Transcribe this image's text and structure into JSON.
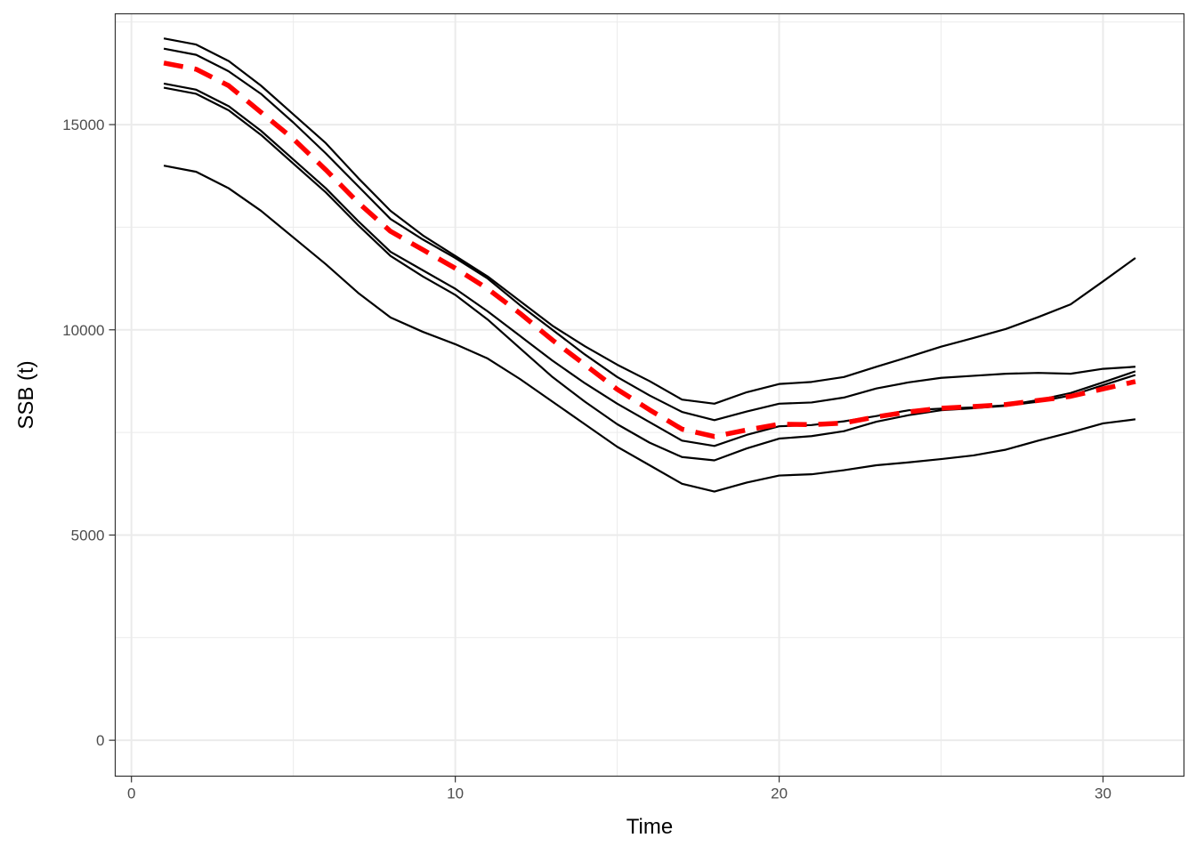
{
  "chart_data": {
    "type": "line",
    "title": "",
    "xlabel": "Time",
    "ylabel": "SSB (t)",
    "xlim": [
      -0.5,
      32.5
    ],
    "ylim": [
      -875,
      17700
    ],
    "x_ticks": [
      0,
      10,
      20,
      30
    ],
    "x_tick_labels": [
      "0",
      "10",
      "20",
      "30"
    ],
    "y_ticks": [
      0,
      5000,
      10000,
      15000
    ],
    "y_tick_labels": [
      "0",
      "5000",
      "10000",
      "15000"
    ],
    "grid": true,
    "legend": "none",
    "x": [
      1,
      2,
      3,
      4,
      5,
      6,
      7,
      8,
      9,
      10,
      11,
      12,
      13,
      14,
      15,
      16,
      17,
      18,
      19,
      20,
      21,
      22,
      23,
      24,
      25,
      26,
      27,
      28,
      29,
      30,
      31
    ],
    "series": [
      {
        "color": "#000000",
        "style": "solid",
        "values": [
          17100,
          16950,
          16550,
          15950,
          15250,
          14550,
          13700,
          12900,
          12300,
          11800,
          11300,
          10700,
          10100,
          9600,
          9150,
          8750,
          8300,
          8200,
          8480,
          8680,
          8730,
          8850,
          9100,
          9340,
          9590,
          9800,
          10020,
          10310,
          10620,
          11180,
          11750
        ]
      },
      {
        "color": "#000000",
        "style": "solid",
        "values": [
          16850,
          16700,
          16300,
          15750,
          15050,
          14300,
          13500,
          12700,
          12200,
          11750,
          11250,
          10600,
          10000,
          9400,
          8850,
          8400,
          8000,
          7800,
          8010,
          8200,
          8230,
          8350,
          8570,
          8720,
          8830,
          8880,
          8930,
          8950,
          8930,
          9050,
          9100
        ]
      },
      {
        "color": "#000000",
        "style": "solid",
        "values": [
          16000,
          15850,
          15450,
          14850,
          14150,
          13450,
          12650,
          11900,
          11450,
          11000,
          10450,
          9850,
          9250,
          8700,
          8200,
          7750,
          7300,
          7170,
          7440,
          7650,
          7680,
          7770,
          7900,
          8040,
          8080,
          8110,
          8160,
          8290,
          8460,
          8720,
          8990
        ]
      },
      {
        "color": "#000000",
        "style": "solid",
        "values": [
          15900,
          15750,
          15350,
          14750,
          14050,
          13350,
          12550,
          11800,
          11300,
          10850,
          10250,
          9550,
          8850,
          8250,
          7700,
          7250,
          6900,
          6820,
          7110,
          7350,
          7410,
          7530,
          7760,
          7920,
          8040,
          8090,
          8150,
          8250,
          8400,
          8650,
          8900
        ]
      },
      {
        "color": "#000000",
        "style": "solid",
        "values": [
          14000,
          13850,
          13450,
          12900,
          12250,
          11600,
          10900,
          10300,
          9950,
          9650,
          9300,
          8800,
          8250,
          7700,
          7150,
          6700,
          6250,
          6060,
          6280,
          6450,
          6480,
          6580,
          6700,
          6770,
          6850,
          6940,
          7080,
          7300,
          7500,
          7720,
          7820
        ]
      },
      {
        "color": "#ff0000",
        "style": "dashed",
        "values": [
          16500,
          16350,
          15950,
          15300,
          14650,
          13900,
          13100,
          12400,
          11950,
          11500,
          11000,
          10400,
          9750,
          9150,
          8550,
          8050,
          7580,
          7400,
          7560,
          7700,
          7690,
          7730,
          7880,
          8000,
          8090,
          8130,
          8180,
          8280,
          8380,
          8560,
          8740
        ]
      }
    ]
  }
}
